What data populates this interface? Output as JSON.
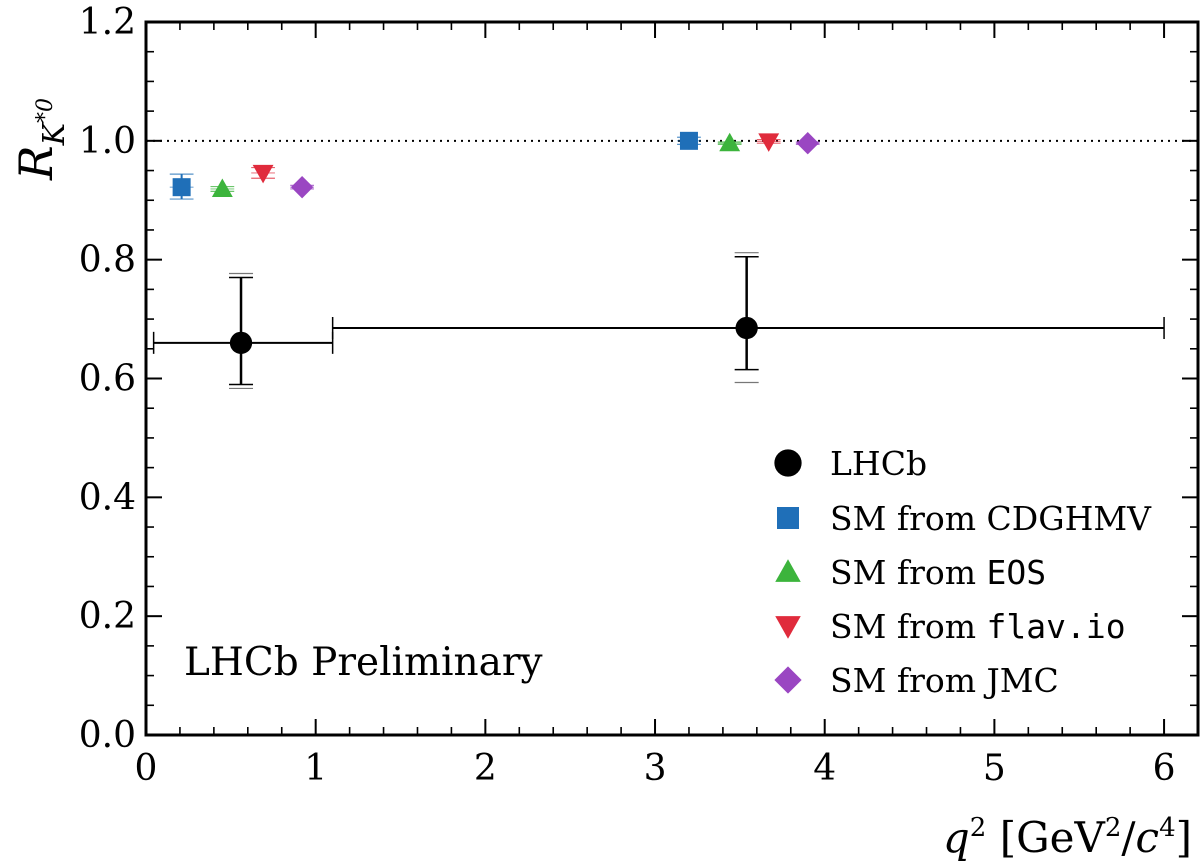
{
  "chart_data": {
    "type": "scatter",
    "x_range": [
      0,
      6.2
    ],
    "y_range": [
      0,
      1.2
    ],
    "x_ticks": [
      "0",
      "1",
      "2",
      "3",
      "4",
      "5",
      "6"
    ],
    "y_ticks": [
      "0.0",
      "0.2",
      "0.4",
      "0.6",
      "0.8",
      "1.0",
      "1.2"
    ],
    "x_tick_values": [
      0,
      1,
      2,
      3,
      4,
      5,
      6
    ],
    "y_tick_values": [
      0,
      0.2,
      0.4,
      0.6,
      0.8,
      1.0,
      1.2
    ],
    "reference_line": 1.0,
    "annotation": "LHCb Preliminary",
    "grid": false,
    "legend_position": "bottom-right",
    "colors": {
      "lhcb": "#000000",
      "cdghmv": "#1f6fb8",
      "eos": "#3cb43c",
      "flavio": "#e02b3c",
      "jmc": "#9a46c2"
    },
    "series": [
      {
        "key": "lhcb",
        "name": "LHCb",
        "marker": "circle",
        "color": "#000000",
        "points": [
          {
            "x": 0.56,
            "xerr": [
              0.515,
              0.54
            ],
            "y": 0.66,
            "yerr": [
              0.07,
              0.11
            ],
            "ysys": [
              0.07,
              0.11
            ]
          },
          {
            "x": 3.54,
            "xerr": [
              2.44,
              2.46
            ],
            "y": 0.685,
            "yerr": [
              0.07,
              0.12
            ],
            "ysys": [
              0.085,
              0.12
            ]
          }
        ]
      },
      {
        "key": "cdghmv",
        "name_parts": [
          "SM from ",
          "CDGHMV"
        ],
        "name_mono": false,
        "marker": "square",
        "color": "#1f6fb8",
        "points": [
          {
            "x": 0.21,
            "y": 0.922,
            "yerr": [
              0.02,
              0.022
            ],
            "xbar": 0.07
          },
          {
            "x": 3.2,
            "y": 1.0,
            "yerr": [
              0.006,
              0.006
            ],
            "xbar": 0.07
          }
        ]
      },
      {
        "key": "eos",
        "name_parts": [
          "SM from ",
          "EOS"
        ],
        "name_mono": true,
        "marker": "triangle-up",
        "color": "#3cb43c",
        "points": [
          {
            "x": 0.45,
            "y": 0.919,
            "yerr": [
              0.004,
              0.004
            ],
            "xbar": 0.07
          },
          {
            "x": 3.44,
            "y": 0.996,
            "yerr": [
              0.002,
              0.002
            ],
            "xbar": 0.07
          }
        ]
      },
      {
        "key": "flavio",
        "name_parts": [
          "SM from ",
          "flav.io"
        ],
        "name_mono": true,
        "marker": "triangle-down",
        "color": "#e02b3c",
        "points": [
          {
            "x": 0.69,
            "y": 0.946,
            "yerr": [
              0.009,
              0.009
            ],
            "xbar": 0.07
          },
          {
            "x": 3.67,
            "y": 0.999,
            "yerr": [
              0.003,
              0.003
            ],
            "xbar": 0.07
          }
        ]
      },
      {
        "key": "jmc",
        "name_parts": [
          "SM from ",
          "JMC"
        ],
        "name_mono": false,
        "marker": "diamond",
        "color": "#9a46c2",
        "points": [
          {
            "x": 0.92,
            "y": 0.922,
            "yerr": [
              0.003,
              0.003
            ],
            "xbar": 0.07
          },
          {
            "x": 3.9,
            "y": 0.996,
            "yerr": [
              0.002,
              0.002
            ],
            "xbar": 0.07
          }
        ]
      }
    ]
  }
}
